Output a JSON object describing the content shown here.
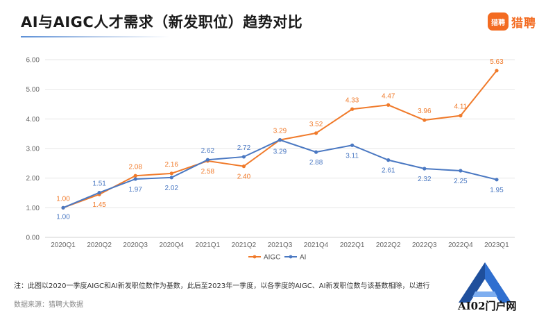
{
  "header": {
    "title": "AI与AIGC人才需求（新发职位）趋势对比",
    "logo_icon_text": "猎聘",
    "logo_text": "猎聘"
  },
  "chart_data": {
    "type": "line",
    "categories": [
      "2020Q1",
      "2020Q2",
      "2020Q3",
      "2020Q4",
      "2021Q1",
      "2021Q2",
      "2021Q3",
      "2021Q4",
      "2022Q1",
      "2022Q2",
      "2022Q3",
      "2022Q4",
      "2023Q1"
    ],
    "series": [
      {
        "name": "AIGC",
        "color": "#f07a2a",
        "values": [
          1.0,
          1.45,
          2.08,
          2.16,
          2.58,
          2.4,
          3.29,
          3.52,
          4.33,
          4.47,
          3.96,
          4.11,
          5.63
        ]
      },
      {
        "name": "AI",
        "color": "#4a78c2",
        "values": [
          1.0,
          1.51,
          1.97,
          2.02,
          2.62,
          2.72,
          3.29,
          2.88,
          3.11,
          2.61,
          2.32,
          2.25,
          1.95
        ]
      }
    ],
    "ylim": [
      0,
      6
    ],
    "yticks": [
      "0.00",
      "1.00",
      "2.00",
      "3.00",
      "4.00",
      "5.00",
      "6.00"
    ],
    "grid": true,
    "legend": "bottom",
    "xlabel": "",
    "ylabel": ""
  },
  "footnote": "注：此图以2020一季度AIGC和AI新发职位数作为基数，此后至2023年一季度，以各季度的AIGC、AI新发职位数与该基数相除，以进行",
  "source": "数据来源：猎聘大数据",
  "watermark": {
    "text": "AI02门户网",
    "icon": "letter-a-logo"
  }
}
